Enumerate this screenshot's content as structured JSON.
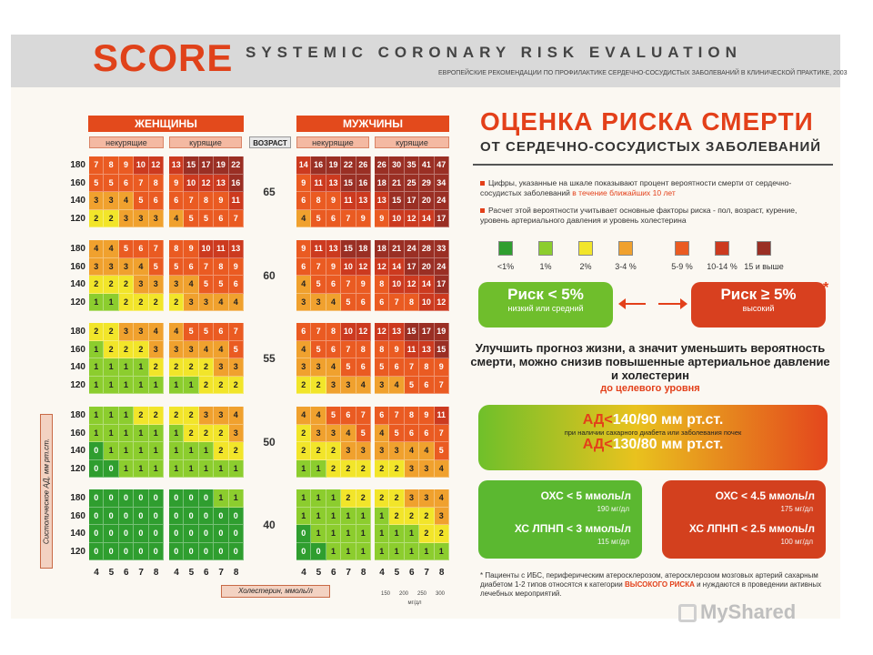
{
  "header": {
    "logo": "SCORE",
    "title": "SYSTEMIC CORONARY RISK EVALUATION",
    "subtitle": "ЕВРОПЕЙСКИЕ РЕКОМЕНДАЦИИ ПО ПРОФИЛАКТИКЕ СЕРДЕЧНО-СОСУДИСТЫХ ЗАБОЛЕВАНИЙ В КЛИНИЧЕСКОЙ ПРАКТИКЕ, 2003"
  },
  "table": {
    "women": "ЖЕНЩИНЫ",
    "men": "МУЖЧИНЫ",
    "nonsmoking": "некурящие",
    "smoking": "курящие",
    "age_header": "ВОЗРАСТ",
    "pressures": [
      "180",
      "160",
      "140",
      "120"
    ],
    "ages": [
      "65",
      "60",
      "55",
      "50",
      "40"
    ],
    "chol_ticks": [
      "4",
      "5",
      "6",
      "7",
      "8"
    ],
    "mgdl_ticks": [
      "150",
      "200",
      "250",
      "300"
    ],
    "mgdl_unit": "мг/дл",
    "ylabel": "Систолическое АД, мм рт.ст.",
    "xlabel": "Холестерин, ммоль/л",
    "bands": [
      {
        "age": "65",
        "women_ns": [
          [
            "7",
            "8",
            "9",
            "10",
            "12"
          ],
          [
            "5",
            "5",
            "6",
            "7",
            "8"
          ],
          [
            "3",
            "3",
            "4",
            "5",
            "6"
          ],
          [
            "2",
            "2",
            "3",
            "3",
            "3"
          ]
        ],
        "women_s": [
          [
            "13",
            "15",
            "17",
            "19",
            "22"
          ],
          [
            "9",
            "10",
            "12",
            "13",
            "16"
          ],
          [
            "6",
            "7",
            "8",
            "9",
            "11"
          ],
          [
            "4",
            "5",
            "5",
            "6",
            "7"
          ]
        ],
        "men_ns": [
          [
            "14",
            "16",
            "19",
            "22",
            "26"
          ],
          [
            "9",
            "11",
            "13",
            "15",
            "16"
          ],
          [
            "6",
            "8",
            "9",
            "11",
            "13"
          ],
          [
            "4",
            "5",
            "6",
            "7",
            "9"
          ]
        ],
        "men_s": [
          [
            "26",
            "30",
            "35",
            "41",
            "47"
          ],
          [
            "18",
            "21",
            "25",
            "29",
            "34"
          ],
          [
            "13",
            "15",
            "17",
            "20",
            "24"
          ],
          [
            "9",
            "10",
            "12",
            "14",
            "17"
          ]
        ]
      },
      {
        "age": "60",
        "women_ns": [
          [
            "4",
            "4",
            "5",
            "6",
            "7"
          ],
          [
            "3",
            "3",
            "3",
            "4",
            "5"
          ],
          [
            "2",
            "2",
            "2",
            "3",
            "3"
          ],
          [
            "1",
            "1",
            "2",
            "2",
            "2"
          ]
        ],
        "women_s": [
          [
            "8",
            "9",
            "10",
            "11",
            "13"
          ],
          [
            "5",
            "6",
            "7",
            "8",
            "9"
          ],
          [
            "3",
            "4",
            "5",
            "5",
            "6"
          ],
          [
            "2",
            "3",
            "3",
            "4",
            "4"
          ]
        ],
        "men_ns": [
          [
            "9",
            "11",
            "13",
            "15",
            "18"
          ],
          [
            "6",
            "7",
            "9",
            "10",
            "12"
          ],
          [
            "4",
            "5",
            "6",
            "7",
            "9"
          ],
          [
            "3",
            "3",
            "4",
            "5",
            "6"
          ]
        ],
        "men_s": [
          [
            "18",
            "21",
            "24",
            "28",
            "33"
          ],
          [
            "12",
            "14",
            "17",
            "20",
            "24"
          ],
          [
            "8",
            "10",
            "12",
            "14",
            "17"
          ],
          [
            "6",
            "7",
            "8",
            "10",
            "12"
          ]
        ]
      },
      {
        "age": "55",
        "women_ns": [
          [
            "2",
            "2",
            "3",
            "3",
            "4"
          ],
          [
            "1",
            "2",
            "2",
            "2",
            "3"
          ],
          [
            "1",
            "1",
            "1",
            "1",
            "2"
          ],
          [
            "1",
            "1",
            "1",
            "1",
            "1"
          ]
        ],
        "women_s": [
          [
            "4",
            "5",
            "5",
            "6",
            "7"
          ],
          [
            "3",
            "3",
            "4",
            "4",
            "5"
          ],
          [
            "2",
            "2",
            "2",
            "3",
            "3"
          ],
          [
            "1",
            "1",
            "2",
            "2",
            "2"
          ]
        ],
        "men_ns": [
          [
            "6",
            "7",
            "8",
            "10",
            "12"
          ],
          [
            "4",
            "5",
            "6",
            "7",
            "8"
          ],
          [
            "3",
            "3",
            "4",
            "5",
            "6"
          ],
          [
            "2",
            "2",
            "3",
            "3",
            "4"
          ]
        ],
        "men_s": [
          [
            "12",
            "13",
            "15",
            "17",
            "19"
          ],
          [
            "8",
            "9",
            "11",
            "13",
            "15"
          ],
          [
            "5",
            "6",
            "7",
            "8",
            "9"
          ],
          [
            "3",
            "4",
            "5",
            "6",
            "7"
          ]
        ]
      },
      {
        "age": "50",
        "women_ns": [
          [
            "1",
            "1",
            "1",
            "2",
            "2"
          ],
          [
            "1",
            "1",
            "1",
            "1",
            "1"
          ],
          [
            "0",
            "1",
            "1",
            "1",
            "1"
          ],
          [
            "0",
            "0",
            "1",
            "1",
            "1"
          ]
        ],
        "women_s": [
          [
            "2",
            "2",
            "3",
            "3",
            "4"
          ],
          [
            "1",
            "2",
            "2",
            "2",
            "3"
          ],
          [
            "1",
            "1",
            "1",
            "2",
            "2"
          ],
          [
            "1",
            "1",
            "1",
            "1",
            "1"
          ]
        ],
        "men_ns": [
          [
            "4",
            "4",
            "5",
            "6",
            "7"
          ],
          [
            "2",
            "3",
            "3",
            "4",
            "5"
          ],
          [
            "2",
            "2",
            "2",
            "3",
            "3"
          ],
          [
            "1",
            "1",
            "2",
            "2",
            "2"
          ]
        ],
        "men_s": [
          [
            "6",
            "7",
            "8",
            "9",
            "11"
          ],
          [
            "4",
            "5",
            "6",
            "6",
            "7"
          ],
          [
            "3",
            "3",
            "4",
            "4",
            "5"
          ],
          [
            "2",
            "2",
            "3",
            "3",
            "4"
          ]
        ]
      },
      {
        "age": "40",
        "women_ns": [
          [
            "0",
            "0",
            "0",
            "0",
            "0"
          ],
          [
            "0",
            "0",
            "0",
            "0",
            "0"
          ],
          [
            "0",
            "0",
            "0",
            "0",
            "0"
          ],
          [
            "0",
            "0",
            "0",
            "0",
            "0"
          ]
        ],
        "women_s": [
          [
            "0",
            "0",
            "0",
            "1",
            "1"
          ],
          [
            "0",
            "0",
            "0",
            "0",
            "0"
          ],
          [
            "0",
            "0",
            "0",
            "0",
            "0"
          ],
          [
            "0",
            "0",
            "0",
            "0",
            "0"
          ]
        ],
        "men_ns": [
          [
            "1",
            "1",
            "1",
            "2",
            "2"
          ],
          [
            "1",
            "1",
            "1",
            "1",
            "1"
          ],
          [
            "0",
            "1",
            "1",
            "1",
            "1"
          ],
          [
            "0",
            "0",
            "1",
            "1",
            "1"
          ]
        ],
        "men_s": [
          [
            "2",
            "2",
            "3",
            "3",
            "4"
          ],
          [
            "1",
            "2",
            "2",
            "2",
            "3"
          ],
          [
            "1",
            "1",
            "1",
            "2",
            "2"
          ],
          [
            "1",
            "1",
            "1",
            "1",
            "1"
          ]
        ]
      }
    ]
  },
  "risk_colors": {
    "r0": "#2f9e2f",
    "r1": "#8ccd2e",
    "r2": "#f2e52a",
    "r3": "#f0a12e",
    "r5": "#ea5b22",
    "r10": "#cc3a1f",
    "r15": "#9a2f24"
  },
  "panel": {
    "title_line1": "ОЦЕНКА РИСКА СМЕРТИ",
    "title_line2": "ОТ СЕРДЕЧНО-СОСУДИСТЫХ ЗАБОЛЕВАНИЙ",
    "bullet1_a": "Цифры, указанные на шкале показывают процент вероятности смерти от сердечно-сосудистых заболеваний",
    "bullet1_b": "в течение ближайших 10 лет",
    "bullet2": "Расчет этой вероятности учитывает основные факторы риска - пол, возраст, курение, уровень артериального давления и уровень холестерина",
    "legend": [
      "<1%",
      "1%",
      "2%",
      "3-4 %",
      "5-9 %",
      "10-14 %",
      "15 и выше"
    ],
    "low_risk_big": "Риск < 5%",
    "low_risk_small": "низкий или средний",
    "high_risk_big": "Риск ≥ 5%",
    "high_risk_small": "высокий",
    "star": "*",
    "improve_text": "Улучшить прогноз жизни, а значит уменьшить вероятность смерти, можно снизив повышенные артериальное давление и холестерин",
    "improve_target": "до целевого уровня",
    "ad1_label": "АД<",
    "ad1_value": "140/90 мм рт.ст.",
    "ad_note": "при наличии сахарного диабета или заболевания почек",
    "ad2_label": "АД<",
    "ad2_value": "130/80 мм рт.ст.",
    "chol_low": {
      "l1": "ОХС < 5 ммоль/л",
      "s1": "190 мг/дл",
      "l2": "ХС ЛПНП < 3 ммоль/л",
      "s2": "115 мг/дл"
    },
    "chol_high": {
      "l1": "ОХС < 4.5 ммоль/л",
      "s1": "175 мг/дл",
      "l2": "ХС ЛПНП < 2.5 ммоль/л",
      "s2": "100 мг/дл"
    },
    "footnote_a": "* Пациенты с ИБС, периферическим атеросклерозом, атеросклерозом мозговых артерий сахарным диабетом 1-2 типов относятся к категории",
    "footnote_b": "ВЫСОКОГО РИСКА",
    "footnote_c": "и нуждаются в проведении активных лечебных мероприятий."
  },
  "watermark": "MyShared"
}
